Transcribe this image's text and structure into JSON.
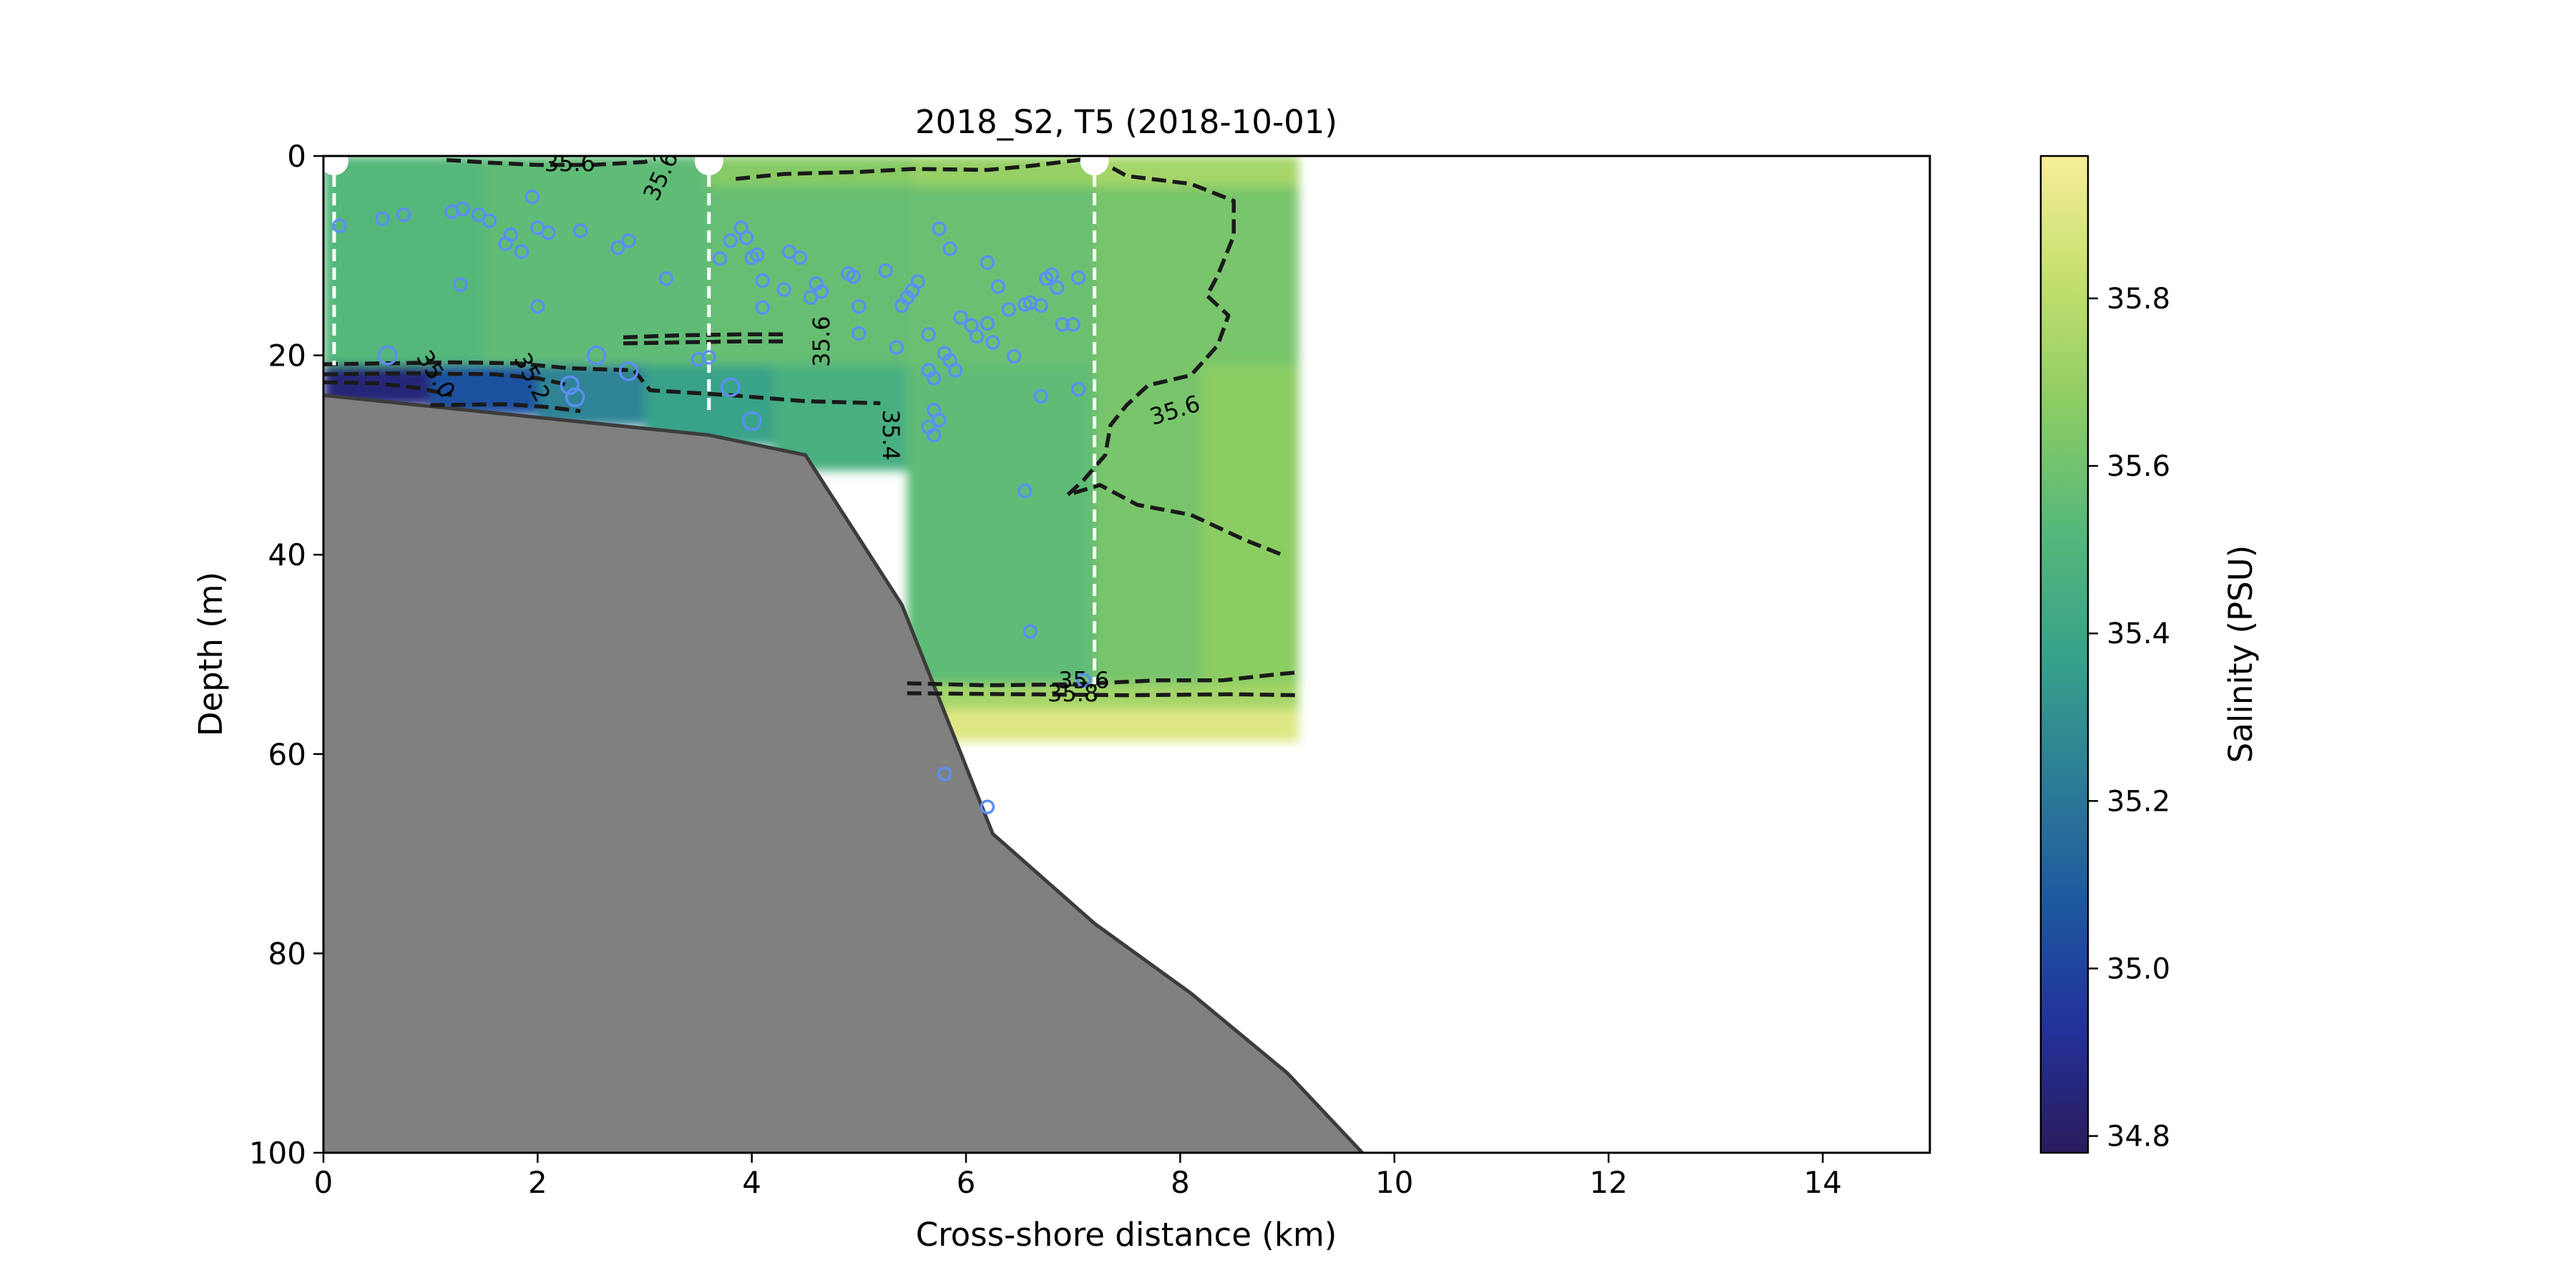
{
  "chart_data": {
    "type": "heatmap",
    "title": "2018_S2, T5 (2018-10-01)",
    "xlabel": "Cross-shore distance (km)",
    "ylabel": "Depth (m)",
    "xlim": [
      0,
      15
    ],
    "ylim": [
      100,
      0
    ],
    "y_inverted": true,
    "x_ticks": [
      0,
      2,
      4,
      6,
      8,
      10,
      12,
      14
    ],
    "y_ticks": [
      0,
      20,
      40,
      60,
      80,
      100
    ],
    "colorbar": {
      "label": "Salinity (PSU)",
      "colormap": "viridis-like (navy-teal-green-yellow)",
      "range": [
        34.78,
        35.97
      ],
      "ticks": [
        34.8,
        35.0,
        35.2,
        35.4,
        35.6,
        35.8
      ],
      "colors": [
        "#2b1b5c",
        "#23319a",
        "#1d58a0",
        "#2d7d97",
        "#38a28a",
        "#55b87a",
        "#8ccc64",
        "#c4df6e",
        "#f7ee98"
      ]
    },
    "salinity_field": [
      {
        "x0": 0.0,
        "x1": 1.5,
        "depth_top": 0,
        "depth_bottom": 21,
        "salinity": 35.52
      },
      {
        "x0": 1.5,
        "x1": 3.6,
        "depth_top": 0,
        "depth_bottom": 21,
        "salinity": 35.55
      },
      {
        "x0": 3.6,
        "x1": 5.5,
        "depth_top": 0,
        "depth_bottom": 21,
        "salinity": 35.57
      },
      {
        "x0": 5.5,
        "x1": 7.2,
        "depth_top": 0,
        "depth_bottom": 21,
        "salinity": 35.58
      },
      {
        "x0": 7.2,
        "x1": 9.1,
        "depth_top": 0,
        "depth_bottom": 21,
        "salinity": 35.62
      },
      {
        "x0": 3.6,
        "x1": 5.5,
        "depth_top": 0,
        "depth_bottom": 3,
        "salinity": 35.66
      },
      {
        "x0": 5.5,
        "x1": 7.2,
        "depth_top": 0,
        "depth_bottom": 3,
        "salinity": 35.7
      },
      {
        "x0": 7.2,
        "x1": 9.1,
        "depth_top": 0,
        "depth_bottom": 3,
        "salinity": 35.74
      },
      {
        "x0": 0.0,
        "x1": 1.0,
        "depth_top": 21,
        "depth_bottom": 25,
        "salinity": 34.85
      },
      {
        "x0": 1.0,
        "x1": 2.0,
        "depth_top": 21,
        "depth_bottom": 26,
        "salinity": 35.05
      },
      {
        "x0": 2.0,
        "x1": 3.0,
        "depth_top": 21,
        "depth_bottom": 27,
        "salinity": 35.25
      },
      {
        "x0": 3.0,
        "x1": 4.2,
        "depth_top": 21,
        "depth_bottom": 29,
        "salinity": 35.38
      },
      {
        "x0": 4.2,
        "x1": 5.45,
        "depth_top": 21,
        "depth_bottom": 31.5,
        "salinity": 35.46
      },
      {
        "x0": 5.45,
        "x1": 7.2,
        "depth_top": 21,
        "depth_bottom": 53,
        "salinity": 35.55
      },
      {
        "x0": 7.2,
        "x1": 8.2,
        "depth_top": 21,
        "depth_bottom": 53,
        "salinity": 35.62
      },
      {
        "x0": 8.2,
        "x1": 9.1,
        "depth_top": 21,
        "depth_bottom": 53,
        "salinity": 35.67
      },
      {
        "x0": 5.45,
        "x1": 9.1,
        "depth_top": 53,
        "depth_bottom": 55.5,
        "salinity": 35.74
      },
      {
        "x0": 5.45,
        "x1": 9.1,
        "depth_top": 55.5,
        "depth_bottom": 58.7,
        "salinity": 35.9
      }
    ],
    "bathymetry": {
      "fill": "#808080",
      "outline": "#3c3c3c",
      "x": [
        0,
        3.6,
        4.5,
        5.4,
        6.25,
        7.2,
        8.1,
        9.0,
        9.7
      ],
      "depth": [
        24,
        28,
        30,
        45,
        68,
        77,
        84,
        92,
        100
      ]
    },
    "profiles": [
      {
        "x": 0.1,
        "depth_top": 0,
        "depth_bottom": 21
      },
      {
        "x": 3.6,
        "depth_top": 0,
        "depth_bottom": 26
      },
      {
        "x": 7.2,
        "depth_top": 0,
        "depth_bottom": 53
      }
    ],
    "contours": [
      {
        "level": 35.6,
        "points": [
          [
            1.15,
            0.4
          ],
          [
            1.6,
            0.7
          ],
          [
            2.0,
            0.9
          ],
          [
            2.5,
            0.9
          ],
          [
            3.0,
            0.6
          ],
          [
            3.1,
            0.3
          ]
        ]
      },
      {
        "level": 35.6,
        "points": [
          [
            3.85,
            2.3
          ],
          [
            4.3,
            1.8
          ],
          [
            5.0,
            1.6
          ],
          [
            5.5,
            1.3
          ],
          [
            6.2,
            1.4
          ],
          [
            6.6,
            1.0
          ],
          [
            7.2,
            0.2
          ]
        ]
      },
      {
        "level": 35.6,
        "points": [
          [
            2.8,
            18.2
          ],
          [
            3.3,
            18.0
          ],
          [
            3.9,
            17.9
          ],
          [
            4.3,
            17.9
          ]
        ]
      },
      {
        "level": 35.6,
        "points": [
          [
            2.8,
            18.8
          ],
          [
            3.3,
            18.7
          ],
          [
            3.9,
            18.6
          ],
          [
            4.3,
            18.6
          ]
        ]
      },
      {
        "level": 35.6,
        "points": [
          [
            7.2,
            0.2
          ],
          [
            7.5,
            2.0
          ],
          [
            8.1,
            2.8
          ],
          [
            8.5,
            4.5
          ],
          [
            8.5,
            8.0
          ],
          [
            8.35,
            12.0
          ],
          [
            8.25,
            14.0
          ],
          [
            8.45,
            16.0
          ],
          [
            8.35,
            19.0
          ],
          [
            8.1,
            22.0
          ],
          [
            7.7,
            23.0
          ],
          [
            7.5,
            25.0
          ],
          [
            7.35,
            27.0
          ],
          [
            7.3,
            30.0
          ],
          [
            7.1,
            32.5
          ],
          [
            6.95,
            34.0
          ],
          [
            7.25,
            33.0
          ],
          [
            7.6,
            35.0
          ],
          [
            8.1,
            36.0
          ],
          [
            8.6,
            38.5
          ],
          [
            8.95,
            40.0
          ]
        ]
      },
      {
        "level": 35.6,
        "points": [
          [
            5.45,
            52.9
          ],
          [
            6.2,
            53.1
          ],
          [
            7.0,
            53.0
          ],
          [
            7.8,
            52.6
          ],
          [
            8.4,
            52.6
          ],
          [
            8.9,
            52.0
          ],
          [
            9.1,
            51.8
          ]
        ]
      },
      {
        "level": 35.8,
        "points": [
          [
            5.45,
            53.9
          ],
          [
            6.5,
            54.0
          ],
          [
            7.5,
            54.1
          ],
          [
            8.5,
            54.0
          ],
          [
            9.1,
            54.1
          ]
        ]
      },
      {
        "level": 35.4,
        "points": [
          [
            0.0,
            20.9
          ],
          [
            0.6,
            20.8
          ],
          [
            1.2,
            20.7
          ],
          [
            1.8,
            20.8
          ],
          [
            2.3,
            21.3
          ],
          [
            2.9,
            21.5
          ],
          [
            3.05,
            23.5
          ],
          [
            3.8,
            24.0
          ],
          [
            4.5,
            24.6
          ],
          [
            5.2,
            24.8
          ]
        ]
      },
      {
        "level": 35.2,
        "points": [
          [
            0.0,
            21.9
          ],
          [
            0.8,
            21.8
          ],
          [
            1.6,
            21.9
          ],
          [
            2.0,
            22.3
          ],
          [
            2.3,
            23.0
          ]
        ]
      },
      {
        "level": 35.2,
        "points": [
          [
            1.0,
            25.0
          ],
          [
            1.7,
            24.9
          ],
          [
            2.1,
            25.2
          ],
          [
            2.4,
            25.6
          ]
        ]
      },
      {
        "level": 35.0,
        "points": [
          [
            0.0,
            22.7
          ],
          [
            0.5,
            22.8
          ],
          [
            0.9,
            23.3
          ],
          [
            1.2,
            24.0
          ]
        ]
      }
    ],
    "contour_labels": [
      {
        "text": "35.6",
        "x": 2.3,
        "depth": 0.7,
        "angle": 0
      },
      {
        "text": "35.6",
        "x": 3.15,
        "depth": 2.0,
        "angle": -65
      },
      {
        "text": "35.6",
        "x": 4.65,
        "depth": 18.6,
        "angle": -90
      },
      {
        "text": "35.6",
        "x": 7.95,
        "depth": 25.5,
        "angle": -17
      },
      {
        "text": "35.6",
        "x": 7.1,
        "depth": 52.6,
        "angle": 0
      },
      {
        "text": "35.8",
        "x": 7.0,
        "depth": 53.9,
        "angle": 0
      },
      {
        "text": "35.4",
        "x": 5.3,
        "depth": 28.0,
        "angle": 90
      },
      {
        "text": "35.2",
        "x": 1.95,
        "depth": 22.2,
        "angle": 63
      },
      {
        "text": "35.0",
        "x": 1.05,
        "depth": 21.9,
        "angle": 58
      }
    ],
    "scatter_points": [
      [
        0.15,
        7,
        1
      ],
      [
        0.55,
        6.3,
        1
      ],
      [
        0.75,
        5.9,
        1
      ],
      [
        1.2,
        5.6,
        1
      ],
      [
        1.3,
        5.3,
        1
      ],
      [
        1.45,
        5.9,
        1
      ],
      [
        1.55,
        6.5,
        1
      ],
      [
        1.7,
        8.8,
        1
      ],
      [
        1.75,
        7.9,
        1
      ],
      [
        1.85,
        9.6,
        1
      ],
      [
        1.95,
        4.1,
        1
      ],
      [
        2.0,
        7.2,
        1
      ],
      [
        2.1,
        7.7,
        1
      ],
      [
        1.28,
        12.9,
        1
      ],
      [
        2.0,
        15.1,
        1
      ],
      [
        2.4,
        7.5,
        1
      ],
      [
        2.75,
        9.2,
        1
      ],
      [
        2.85,
        8.5,
        1
      ],
      [
        3.2,
        12.3,
        1
      ],
      [
        0.6,
        20,
        2
      ],
      [
        2.55,
        20,
        2
      ],
      [
        2.85,
        21.6,
        2
      ],
      [
        2.3,
        23,
        2
      ],
      [
        2.35,
        24.2,
        2
      ],
      [
        3.5,
        20.4,
        1
      ],
      [
        3.6,
        20.2,
        1
      ],
      [
        3.8,
        23.2,
        2
      ],
      [
        4.0,
        26.6,
        2
      ],
      [
        3.7,
        10.3,
        1
      ],
      [
        3.8,
        8.5,
        1
      ],
      [
        3.9,
        7.2,
        1
      ],
      [
        3.95,
        8.2,
        1
      ],
      [
        4.0,
        10.2,
        1
      ],
      [
        4.05,
        9.9,
        1
      ],
      [
        4.1,
        12.5,
        1
      ],
      [
        4.1,
        15.2,
        1
      ],
      [
        4.3,
        13.4,
        1
      ],
      [
        4.35,
        9.6,
        1
      ],
      [
        4.45,
        10.2,
        1
      ],
      [
        4.55,
        14.2,
        1
      ],
      [
        4.6,
        12.8,
        1
      ],
      [
        4.65,
        13.6,
        1
      ],
      [
        4.9,
        11.8,
        1
      ],
      [
        4.95,
        12.1,
        1
      ],
      [
        5.0,
        15.1,
        1
      ],
      [
        5.0,
        17.8,
        1
      ],
      [
        5.25,
        11.5,
        1
      ],
      [
        5.35,
        19.2,
        1
      ],
      [
        5.4,
        15.0,
        1
      ],
      [
        5.45,
        14.2,
        1
      ],
      [
        5.5,
        13.5,
        1
      ],
      [
        5.55,
        12.6,
        1
      ],
      [
        5.65,
        17.9,
        1
      ],
      [
        5.65,
        21.5,
        1
      ],
      [
        5.7,
        22.3,
        1
      ],
      [
        5.7,
        25.5,
        1
      ],
      [
        5.75,
        26.5,
        1
      ],
      [
        5.65,
        27.2,
        1
      ],
      [
        5.7,
        28.0,
        1
      ],
      [
        5.75,
        7.3,
        1
      ],
      [
        5.85,
        9.3,
        1
      ],
      [
        5.8,
        19.8,
        1
      ],
      [
        5.85,
        20.5,
        1
      ],
      [
        5.9,
        21.5,
        1
      ],
      [
        5.95,
        16.2,
        1
      ],
      [
        6.05,
        17.0,
        1
      ],
      [
        6.1,
        18.1,
        1
      ],
      [
        6.2,
        10.7,
        1
      ],
      [
        6.2,
        16.8,
        1
      ],
      [
        6.25,
        18.7,
        1
      ],
      [
        6.3,
        13.1,
        1
      ],
      [
        6.4,
        15.4,
        1
      ],
      [
        6.45,
        20.1,
        1
      ],
      [
        6.55,
        14.9,
        1
      ],
      [
        6.6,
        14.7,
        1
      ],
      [
        6.7,
        15.0,
        1
      ],
      [
        6.7,
        24.1,
        1
      ],
      [
        6.75,
        12.3,
        1
      ],
      [
        6.8,
        11.9,
        1
      ],
      [
        6.85,
        13.2,
        1
      ],
      [
        6.9,
        16.9,
        1
      ],
      [
        7.0,
        16.9,
        1
      ],
      [
        7.05,
        12.2,
        1
      ],
      [
        7.05,
        23.4,
        1
      ],
      [
        6.55,
        33.6,
        1
      ],
      [
        6.6,
        47.7,
        1
      ],
      [
        7.1,
        52.6,
        1
      ],
      [
        5.8,
        62,
        1
      ],
      [
        6.2,
        65.3,
        1
      ]
    ],
    "scatter_style": {
      "color": "#5b8ff5",
      "fill": "none"
    }
  }
}
